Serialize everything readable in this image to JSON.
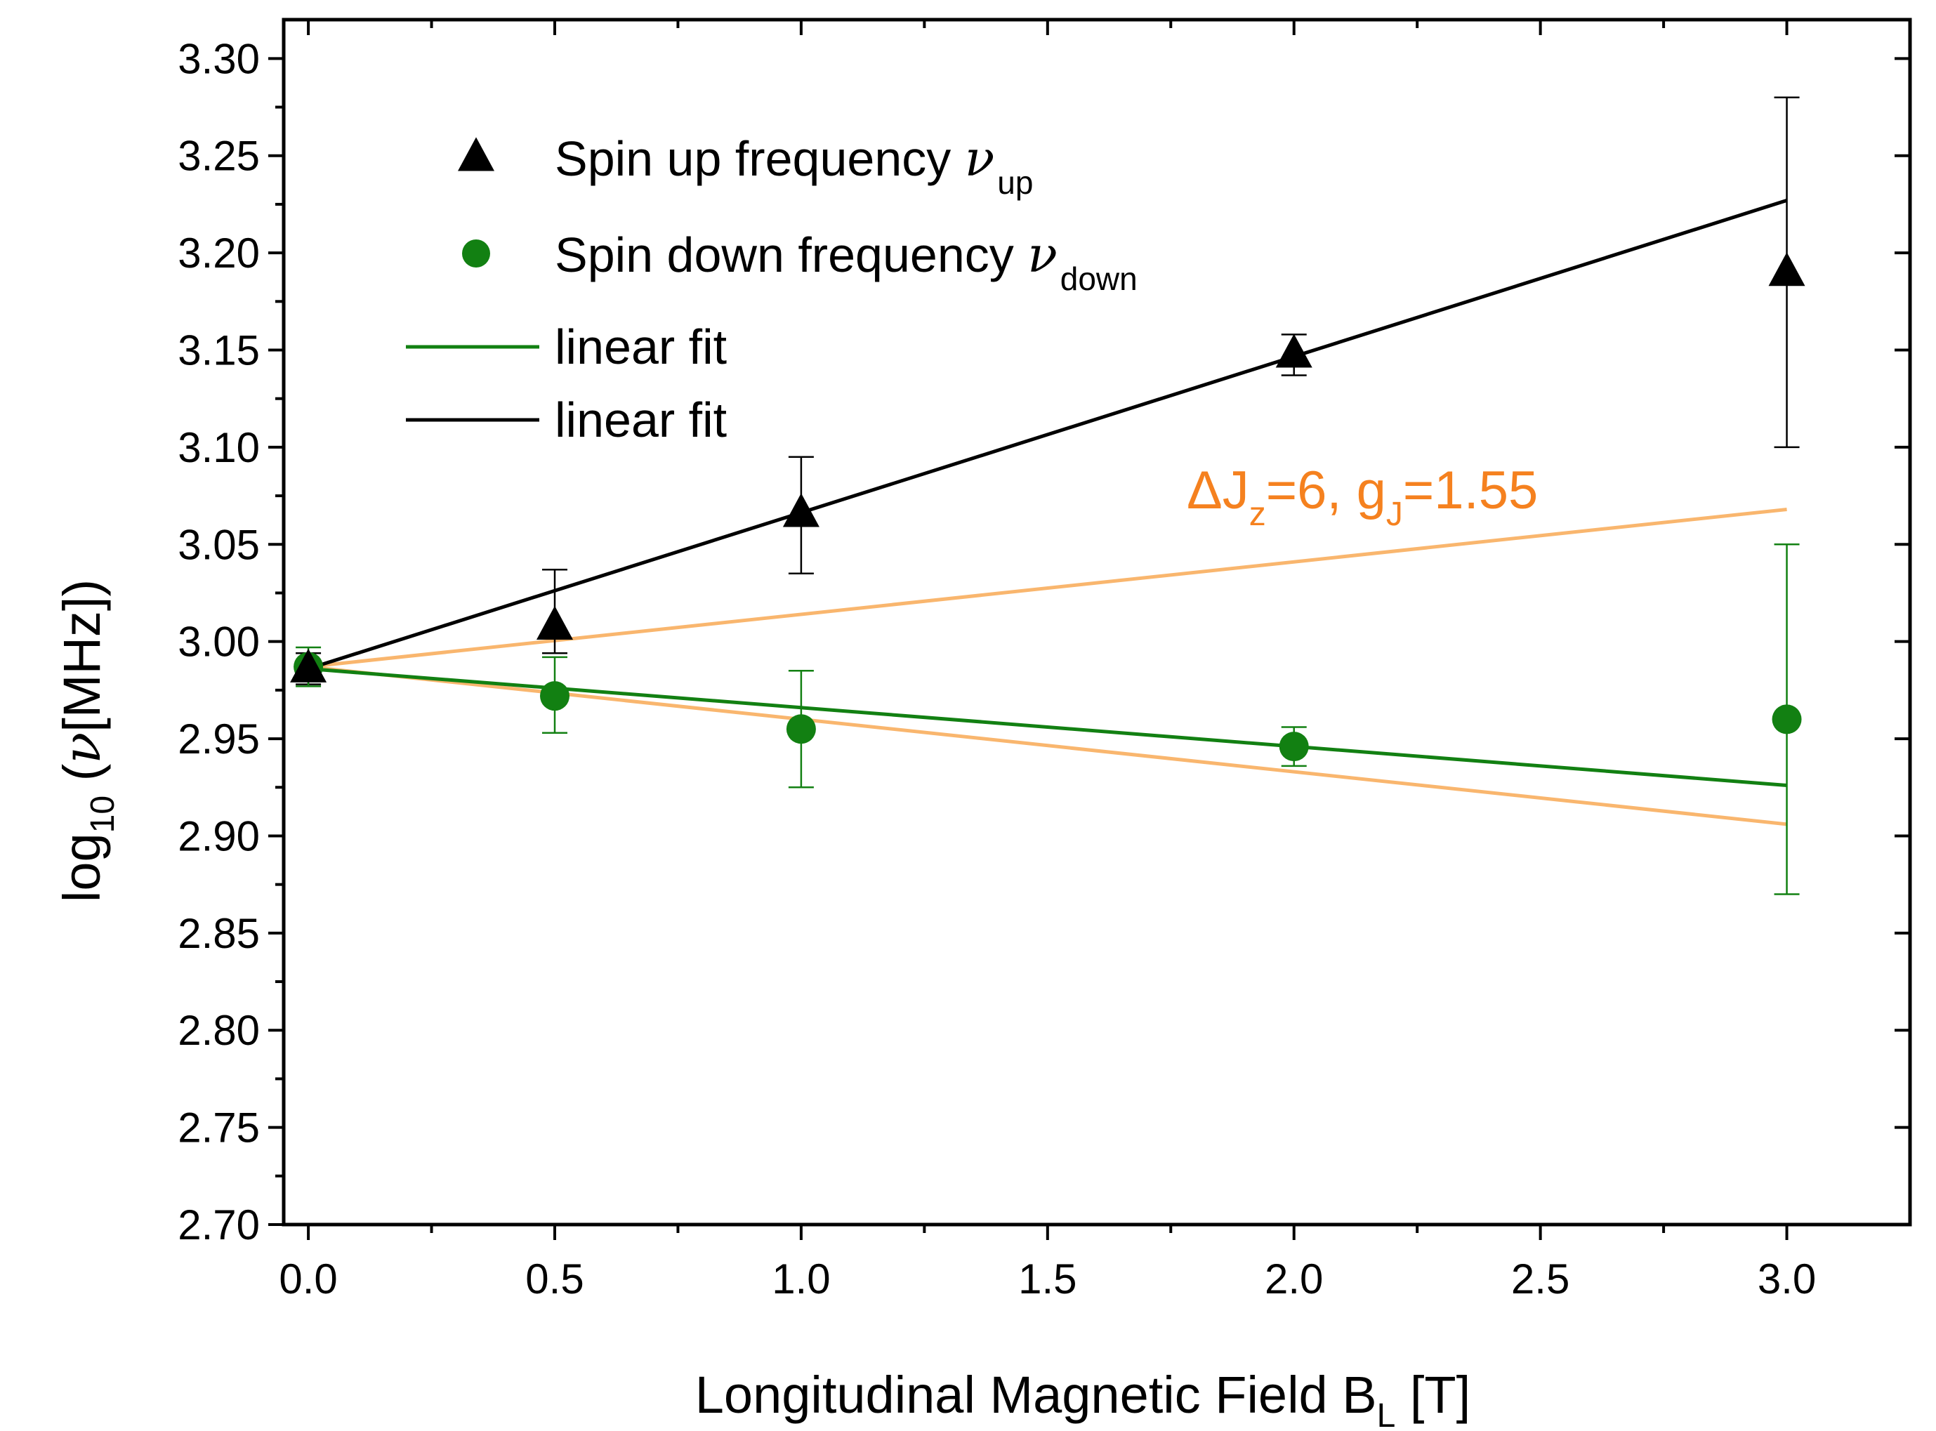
{
  "chart_data": {
    "type": "scatter",
    "xlabel": {
      "main": "Longitudinal Magnetic Field B",
      "sub": "L",
      "unit": " [T]"
    },
    "ylabel": {
      "pre": "log",
      "sub": "10",
      "post": " (",
      "nu": "ν",
      "unit": "[MHz])"
    },
    "xlim": [
      -0.05,
      3.25
    ],
    "ylim": [
      2.7,
      3.32
    ],
    "x_ticks": [
      0.0,
      0.5,
      1.0,
      1.5,
      2.0,
      2.5,
      3.0
    ],
    "x_tick_labels": [
      "0.0",
      "0.5",
      "1.0",
      "1.5",
      "2.0",
      "2.5",
      "3.0"
    ],
    "y_ticks": [
      2.7,
      2.75,
      2.8,
      2.85,
      2.9,
      2.95,
      3.0,
      3.05,
      3.1,
      3.15,
      3.2,
      3.25,
      3.3
    ],
    "y_tick_labels": [
      "2.70",
      "2.75",
      "2.80",
      "2.85",
      "2.90",
      "2.95",
      "3.00",
      "3.05",
      "3.10",
      "3.15",
      "3.20",
      "3.25",
      "3.30"
    ],
    "series": [
      {
        "name": "Spin up frequency ν_up",
        "label": "Spin up frequency ",
        "sym": "ν",
        "sub": "up",
        "marker": "triangle",
        "color": "#000000",
        "x": [
          0.0,
          0.5,
          1.0,
          2.0,
          3.0
        ],
        "y": [
          2.986,
          3.008,
          3.066,
          3.148,
          3.19
        ],
        "err_low": [
          2.978,
          2.994,
          3.035,
          3.137,
          3.1
        ],
        "err_high": [
          2.994,
          3.037,
          3.095,
          3.158,
          3.28
        ]
      },
      {
        "name": "Spin down frequency ν_down",
        "label": "Spin down frequency ",
        "sym": "ν",
        "sub": "down",
        "marker": "circle",
        "color": "#128012",
        "x": [
          0.0,
          0.5,
          1.0,
          2.0,
          3.0
        ],
        "y": [
          2.987,
          2.972,
          2.955,
          2.946,
          2.96
        ],
        "err_low": [
          2.977,
          2.953,
          2.925,
          2.936,
          2.87
        ],
        "err_high": [
          2.997,
          2.992,
          2.985,
          2.956,
          3.05
        ]
      }
    ],
    "fits": [
      {
        "name": "linear fit",
        "color": "#128012",
        "x": [
          0.0,
          3.0
        ],
        "y": [
          2.986,
          2.926
        ],
        "in_legend": true
      },
      {
        "name": "linear fit",
        "color": "#000000",
        "x": [
          0.0,
          3.0
        ],
        "y": [
          2.986,
          3.227
        ],
        "in_legend": true
      },
      {
        "name": "ΔJz=6, gJ=1.55 (upper)",
        "color": "#f9b66e",
        "x": [
          0.0,
          3.0
        ],
        "y": [
          2.987,
          3.068
        ],
        "in_legend": false
      },
      {
        "name": "ΔJz=6, gJ=1.55 (lower)",
        "color": "#f9b66e",
        "x": [
          0.0,
          3.0
        ],
        "y": [
          2.987,
          2.906
        ],
        "in_legend": false
      }
    ],
    "annotation": {
      "color": "#f5811f",
      "parts": [
        {
          "t": "ΔJ",
          "sub": false
        },
        {
          "t": "z",
          "sub": true
        },
        {
          "t": "=6, g",
          "sub": false
        },
        {
          "t": "J",
          "sub": true
        },
        {
          "t": "=1.55",
          "sub": false
        }
      ]
    },
    "legend_position": "upper-left",
    "grid": false
  }
}
